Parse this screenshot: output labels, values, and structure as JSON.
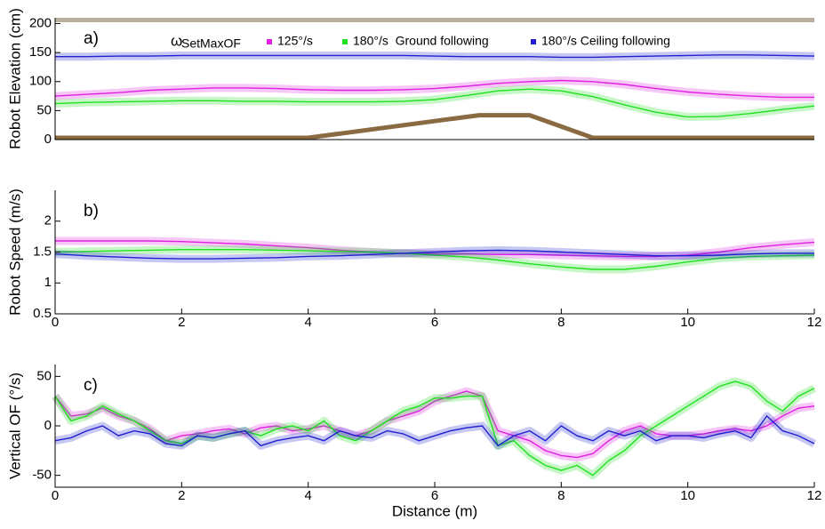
{
  "chart_data": [
    {
      "type": "line",
      "panel_label": "a)",
      "ylabel": "Robot Elevation (cm)",
      "xlim": [
        0,
        12
      ],
      "ylim": [
        0,
        210
      ],
      "yticks": [
        0,
        50,
        100,
        150,
        200
      ],
      "legend_title": "ω",
      "legend_subscript": "SetMaxOF",
      "x": [
        0,
        0.5,
        1,
        1.5,
        2,
        2.5,
        3,
        3.5,
        4,
        4.5,
        5,
        5.5,
        6,
        6.5,
        7,
        7.5,
        8,
        8.5,
        9,
        9.5,
        10,
        10.5,
        11,
        11.5,
        12
      ],
      "series": [
        {
          "name": "125°/s",
          "color": "#e020e0",
          "values": [
            75,
            78,
            81,
            85,
            87,
            89,
            89,
            88,
            86,
            85,
            85,
            86,
            88,
            92,
            97,
            100,
            102,
            100,
            95,
            88,
            82,
            78,
            75,
            73,
            73
          ]
        },
        {
          "name": "180°/s  Ground following",
          "color": "#20e020",
          "values": [
            62,
            64,
            65,
            66,
            67,
            67,
            66,
            66,
            65,
            65,
            65,
            66,
            69,
            76,
            84,
            87,
            84,
            74,
            60,
            47,
            39,
            40,
            45,
            52,
            58
          ]
        },
        {
          "name": "180°/s Ceiling following",
          "color": "#2020d0",
          "values": [
            143,
            143,
            144,
            144,
            145,
            145,
            145,
            145,
            145,
            145,
            145,
            145,
            144,
            143,
            143,
            143,
            142,
            142,
            143,
            144,
            145,
            146,
            146,
            145,
            144
          ]
        }
      ],
      "terrain": {
        "color": "#8a6a40",
        "x": [
          0,
          4,
          6.7,
          7.5,
          8.5,
          12
        ],
        "values": [
          3,
          3,
          42,
          42,
          3,
          3
        ]
      }
    },
    {
      "type": "line",
      "panel_label": "b)",
      "ylabel": "Robot Speed (m/s)",
      "xlim": [
        0,
        12
      ],
      "xticks": [
        0,
        2,
        4,
        6,
        8,
        10,
        12
      ],
      "ylim": [
        0.5,
        2.5
      ],
      "yticks": [
        0.5,
        1,
        1.5,
        2
      ],
      "x": [
        0,
        0.5,
        1,
        1.5,
        2,
        2.5,
        3,
        3.5,
        4,
        4.5,
        5,
        5.5,
        6,
        6.5,
        7,
        7.5,
        8,
        8.5,
        9,
        9.5,
        10,
        10.5,
        11,
        11.5,
        12
      ],
      "series": [
        {
          "color": "#e020e0",
          "values": [
            1.68,
            1.68,
            1.68,
            1.68,
            1.67,
            1.65,
            1.63,
            1.6,
            1.57,
            1.53,
            1.5,
            1.48,
            1.47,
            1.47,
            1.46,
            1.46,
            1.45,
            1.44,
            1.43,
            1.43,
            1.45,
            1.5,
            1.57,
            1.62,
            1.66
          ]
        },
        {
          "color": "#20e020",
          "values": [
            1.5,
            1.51,
            1.52,
            1.53,
            1.54,
            1.54,
            1.54,
            1.53,
            1.52,
            1.51,
            1.5,
            1.48,
            1.45,
            1.42,
            1.37,
            1.31,
            1.26,
            1.22,
            1.22,
            1.27,
            1.34,
            1.4,
            1.43,
            1.44,
            1.45
          ]
        },
        {
          "color": "#2020d0",
          "values": [
            1.47,
            1.44,
            1.42,
            1.4,
            1.39,
            1.39,
            1.4,
            1.41,
            1.43,
            1.44,
            1.46,
            1.48,
            1.5,
            1.52,
            1.53,
            1.52,
            1.5,
            1.48,
            1.46,
            1.44,
            1.44,
            1.45,
            1.47,
            1.48,
            1.48
          ]
        }
      ]
    },
    {
      "type": "line",
      "panel_label": "c)",
      "ylabel": "Vertical OF (°/s)",
      "xlabel": "Distance (m)",
      "xlim": [
        0,
        12
      ],
      "xticks": [
        0,
        2,
        4,
        6,
        8,
        10,
        12
      ],
      "ylim": [
        -62,
        62
      ],
      "yticks": [
        -50,
        0,
        50
      ],
      "x": [
        0,
        0.25,
        0.5,
        0.75,
        1,
        1.25,
        1.5,
        1.75,
        2,
        2.25,
        2.5,
        2.75,
        3,
        3.25,
        3.5,
        3.75,
        4,
        4.25,
        4.5,
        4.75,
        5,
        5.25,
        5.5,
        5.75,
        6,
        6.25,
        6.5,
        6.75,
        7,
        7.25,
        7.5,
        7.75,
        8,
        8.25,
        8.5,
        8.75,
        9,
        9.25,
        9.5,
        9.75,
        10,
        10.25,
        10.5,
        10.75,
        11,
        11.25,
        11.5,
        11.75,
        12
      ],
      "series": [
        {
          "color": "#e020e0",
          "values": [
            30,
            10,
            12,
            18,
            10,
            5,
            -3,
            -15,
            -10,
            -8,
            -5,
            -3,
            -8,
            -2,
            0,
            -5,
            -3,
            0,
            -5,
            -10,
            -5,
            5,
            10,
            15,
            25,
            30,
            35,
            30,
            -5,
            -10,
            -15,
            -25,
            -30,
            -32,
            -28,
            -15,
            -5,
            0,
            -8,
            -10,
            -10,
            -8,
            -5,
            -3,
            -5,
            0,
            10,
            18,
            20
          ]
        },
        {
          "color": "#20e020",
          "values": [
            30,
            5,
            10,
            20,
            12,
            5,
            -5,
            -15,
            -18,
            -10,
            -12,
            -8,
            -5,
            -10,
            -3,
            0,
            -5,
            5,
            -10,
            -15,
            -5,
            5,
            15,
            20,
            28,
            28,
            30,
            30,
            -20,
            -15,
            -30,
            -40,
            -45,
            -40,
            -50,
            -35,
            -25,
            -10,
            0,
            10,
            20,
            30,
            40,
            45,
            40,
            25,
            15,
            30,
            38
          ]
        },
        {
          "color": "#2020d0",
          "values": [
            -15,
            -12,
            -5,
            0,
            -10,
            -5,
            -8,
            -18,
            -20,
            -10,
            -12,
            -8,
            -5,
            -20,
            -15,
            -12,
            -10,
            -15,
            -5,
            -10,
            -12,
            -5,
            -8,
            -15,
            -10,
            -5,
            -2,
            0,
            -20,
            -10,
            -5,
            -15,
            0,
            -10,
            -15,
            -5,
            -10,
            -5,
            -15,
            -10,
            -10,
            -12,
            -8,
            -5,
            -12,
            10,
            -5,
            -10,
            -18
          ]
        }
      ]
    }
  ]
}
